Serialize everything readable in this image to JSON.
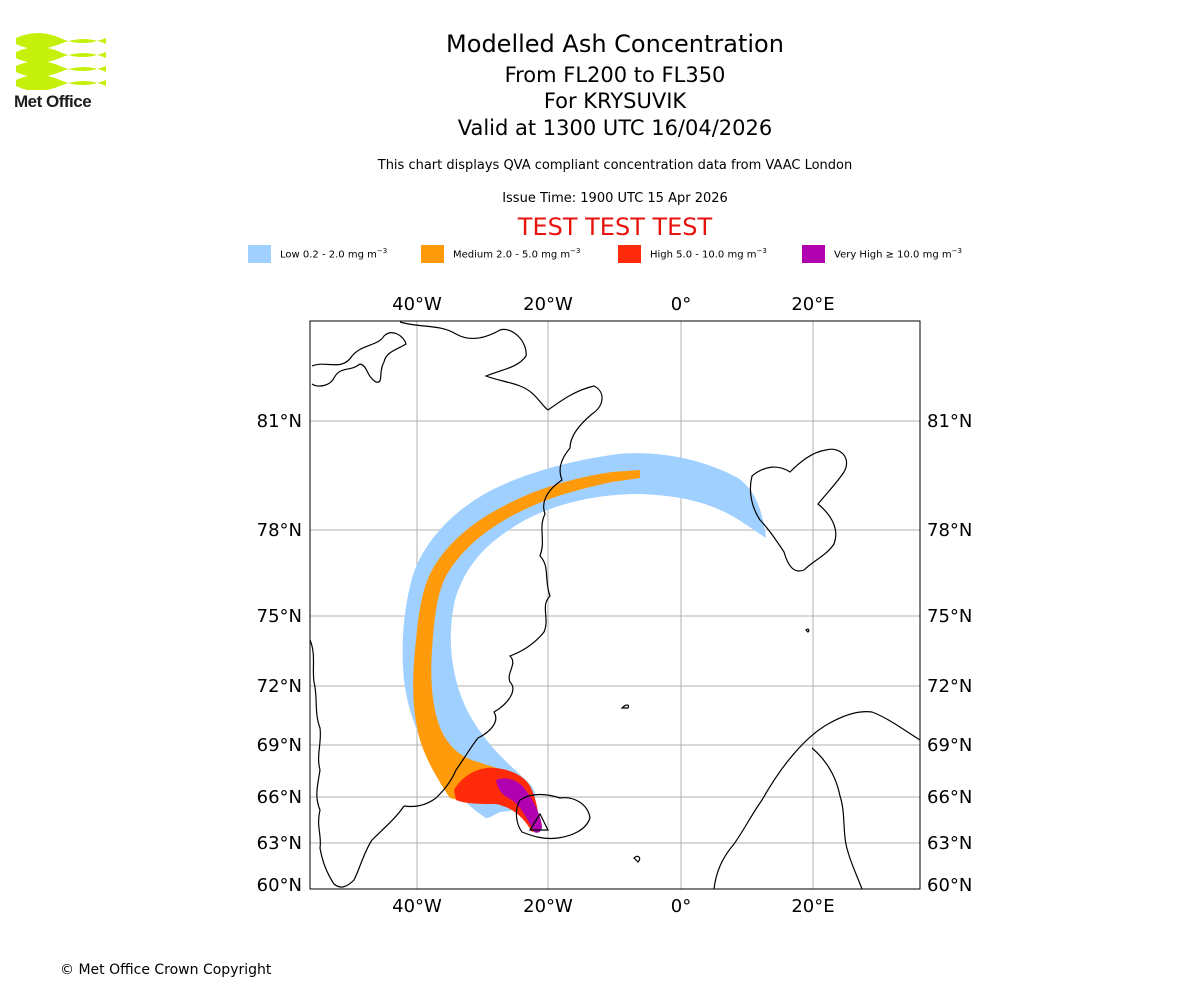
{
  "brand": {
    "name": "Met Office"
  },
  "titles": {
    "main": "Modelled Ash Concentration",
    "levels": "From FL200 to FL350",
    "volcano": "For KRYSUVIK",
    "valid": "Valid at 1300 UTC 16/04/2026",
    "description": "This chart displays QVA compliant concentration data from VAAC London",
    "issue": "Issue Time: 1900 UTC 15 Apr 2026",
    "test_banner": "TEST TEST TEST"
  },
  "legend": [
    {
      "label": "Low 0.2 - 2.0 mg m",
      "color": "#a0d0ff"
    },
    {
      "label": "Medium 2.0 - 5.0 mg m",
      "color": "#ff9a0a"
    },
    {
      "label": "High 5.0 - 10.0 mg m",
      "color": "#ff2a0a"
    },
    {
      "label": "Very High ≥ 10.0 mg m",
      "color": "#b000b0"
    }
  ],
  "legend_exponent": "−3",
  "map": {
    "lon_labels": [
      "40°W",
      "20°W",
      "0°",
      "20°E"
    ],
    "lat_labels": [
      "81°N",
      "78°N",
      "75°N",
      "72°N",
      "69°N",
      "66°N",
      "63°N",
      "60°N"
    ]
  },
  "footer": {
    "copyright": "© Met Office Crown Copyright"
  }
}
